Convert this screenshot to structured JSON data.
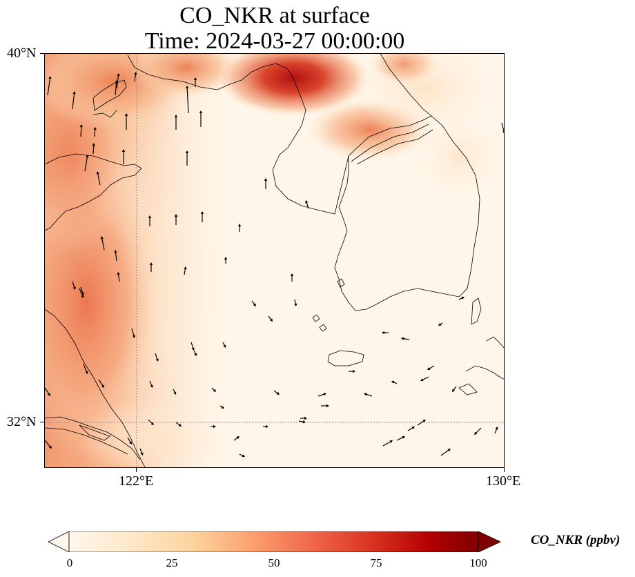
{
  "title": {
    "line1": "CO_NKR at surface",
    "line2": "Time: 2024-03-27 00:00:00"
  },
  "axes": {
    "lat_ticks": [
      {
        "label": "40°N",
        "value": 40
      },
      {
        "label": "32°N",
        "value": 32
      }
    ],
    "lon_ticks": [
      {
        "label": "122°E",
        "value": 122
      },
      {
        "label": "130°E",
        "value": 130
      }
    ],
    "lon_range": [
      120,
      130
    ],
    "lat_range": [
      31,
      40
    ]
  },
  "colorbar": {
    "title": "CO_NKR (ppbv)",
    "ticks": [
      "0",
      "25",
      "50",
      "75",
      "100"
    ],
    "tick_values": [
      0,
      25,
      50,
      75,
      100
    ],
    "range": [
      0,
      100
    ],
    "colormap": "OrRd",
    "extend": "both"
  },
  "gridlines": {
    "style": "dotted",
    "color": "#8a8a8a"
  },
  "colors": {
    "coast": "#000000",
    "vector": "#000000"
  }
}
